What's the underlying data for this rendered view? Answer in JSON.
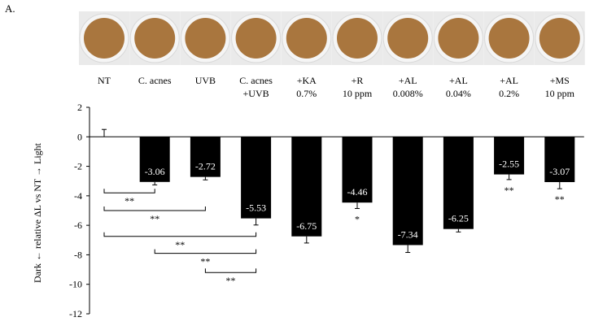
{
  "panel_label": "A.",
  "chart_data": {
    "type": "bar",
    "categories": [
      [
        "NT"
      ],
      [
        "C. acnes"
      ],
      [
        "UVB"
      ],
      [
        "C. acnes",
        "+UVB"
      ],
      [
        "+KA",
        "0.7%"
      ],
      [
        "+R",
        "10 ppm"
      ],
      [
        "+AL",
        "0.008%"
      ],
      [
        "+AL",
        "0.04%"
      ],
      [
        "+AL",
        "0.2%"
      ],
      [
        "+MS",
        "10 ppm"
      ]
    ],
    "values": [
      0,
      -3.06,
      -2.72,
      -5.53,
      -6.75,
      -4.46,
      -7.34,
      -6.25,
      -2.55,
      -3.07
    ],
    "value_labels": [
      "",
      "-3.06",
      "-2.72",
      "-5.53",
      "-6.75",
      "-4.46",
      "-7.34",
      "-6.25",
      "-2.55",
      "-3.07"
    ],
    "error": [
      0.5,
      0.2,
      0.2,
      0.45,
      0.45,
      0.4,
      0.5,
      0.2,
      0.35,
      0.45
    ],
    "significance": [
      "",
      "",
      "",
      "",
      "",
      "*",
      "",
      "",
      "**",
      "**"
    ],
    "comparisons": [
      {
        "from": 0,
        "to": 1,
        "label": "**"
      },
      {
        "from": 0,
        "to": 2,
        "label": "**"
      },
      {
        "from": 0,
        "to": 3,
        "label": "**"
      },
      {
        "from": 1,
        "to": 3,
        "label": "**"
      },
      {
        "from": 2,
        "to": 3,
        "label": "**"
      }
    ],
    "ylabel": "Dark ← relative ΔL vs NT → Light",
    "ylim": [
      -12,
      2
    ],
    "yticks": [
      2,
      0,
      -2,
      -4,
      -6,
      -8,
      -10,
      -12
    ],
    "bar_color": "#000000",
    "photo_color": "#a9763e"
  }
}
